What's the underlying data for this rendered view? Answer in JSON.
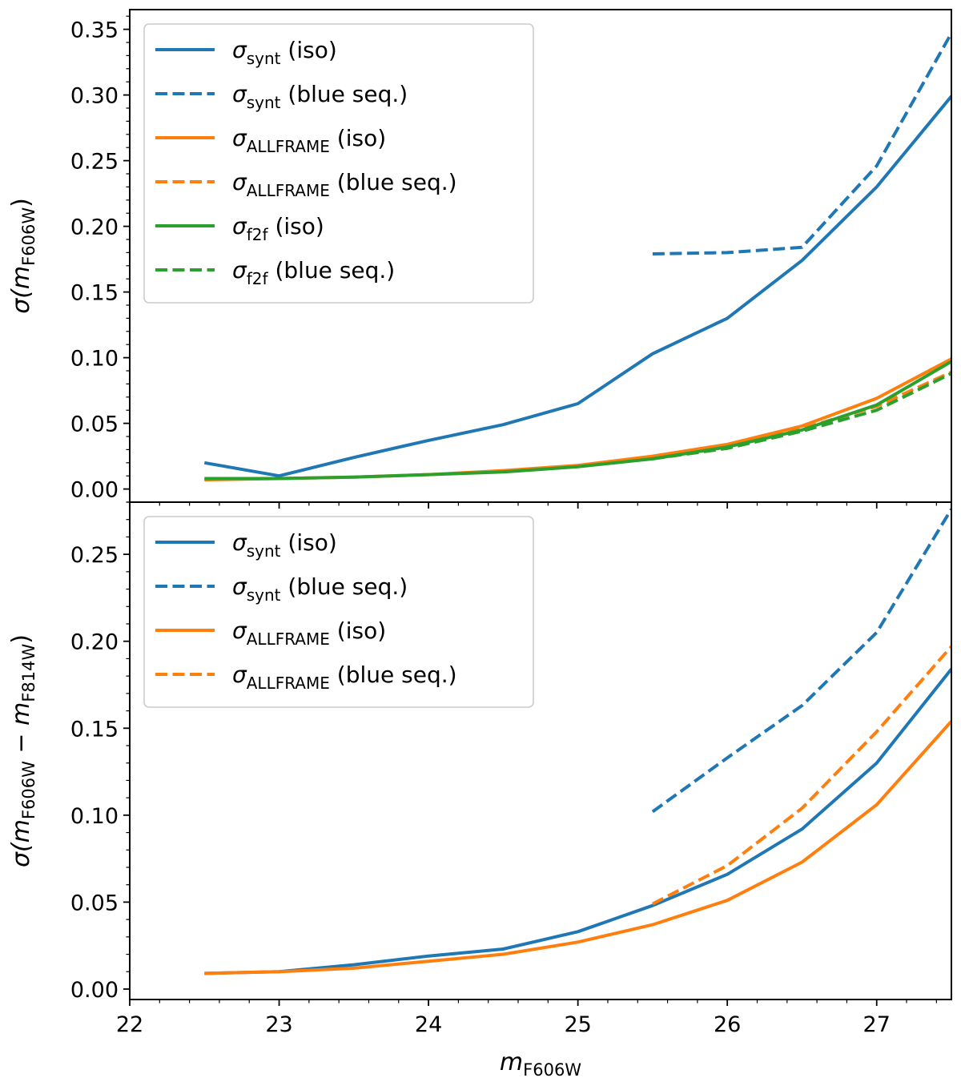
{
  "colors": {
    "blue": "#1f77b4",
    "orange": "#ff7f0e",
    "green": "#2ca02c"
  },
  "chart_data": [
    {
      "type": "line",
      "panel": "top",
      "ylabel": "σ(mF606W)",
      "ylabel_parts": {
        "sym": "σ(",
        "m": "m",
        "sub": "F606W",
        "close": ")"
      },
      "xlabel": "",
      "xlim": [
        22,
        27.5
      ],
      "ylim": [
        -0.01,
        0.365
      ],
      "x_ticks": [
        22,
        23,
        24,
        25,
        26,
        27
      ],
      "y_ticks": [
        0.0,
        0.05,
        0.1,
        0.15,
        0.2,
        0.25,
        0.3,
        0.35
      ],
      "y_tick_labels": [
        "0.00",
        "0.05",
        "0.10",
        "0.15",
        "0.20",
        "0.25",
        "0.30",
        "0.35"
      ],
      "legend_position": "top-left",
      "series": [
        {
          "name": "σsynt (iso)",
          "sigma": "σ",
          "sub": "synt",
          "suffix": " (iso)",
          "color": "blue",
          "dash": "solid",
          "x": [
            22.5,
            23.0,
            23.5,
            24.0,
            24.5,
            25.0,
            25.5,
            26.0,
            26.5,
            27.0,
            27.5
          ],
          "y": [
            0.02,
            0.01,
            0.024,
            0.037,
            0.049,
            0.065,
            0.103,
            0.13,
            0.174,
            0.23,
            0.299
          ]
        },
        {
          "name": "σsynt (blue seq.)",
          "sigma": "σ",
          "sub": "synt",
          "suffix": " (blue seq.)",
          "color": "blue",
          "dash": "dashed",
          "x": [
            25.5,
            26.0,
            26.5,
            27.0,
            27.5
          ],
          "y": [
            0.179,
            0.18,
            0.184,
            0.246,
            0.347
          ]
        },
        {
          "name": "σALLFRAME (iso)",
          "sigma": "σ",
          "sub": "ALLFRAME",
          "suffix": " (iso)",
          "color": "orange",
          "dash": "solid",
          "x": [
            22.5,
            23.0,
            23.5,
            24.0,
            24.5,
            25.0,
            25.5,
            26.0,
            26.5,
            27.0,
            27.5
          ],
          "y": [
            0.007,
            0.008,
            0.009,
            0.011,
            0.014,
            0.018,
            0.025,
            0.034,
            0.048,
            0.069,
            0.099
          ]
        },
        {
          "name": "σALLFRAME (blue seq.)",
          "sigma": "σ",
          "sub": "ALLFRAME",
          "suffix": " (blue seq.)",
          "color": "orange",
          "dash": "dashed",
          "x": [
            25.5,
            26.0,
            26.5,
            27.0,
            27.5
          ],
          "y": [
            0.024,
            0.033,
            0.046,
            0.063,
            0.089
          ]
        },
        {
          "name": "σf2f (iso)",
          "sigma": "σ",
          "sub": "f2f",
          "suffix": " (iso)",
          "color": "green",
          "dash": "solid",
          "x": [
            22.5,
            23.0,
            23.5,
            24.0,
            24.5,
            25.0,
            25.5,
            26.0,
            26.5,
            27.0,
            27.5
          ],
          "y": [
            0.008,
            0.008,
            0.009,
            0.011,
            0.013,
            0.017,
            0.023,
            0.032,
            0.045,
            0.064,
            0.097
          ]
        },
        {
          "name": "σf2f (blue seq.)",
          "sigma": "σ",
          "sub": "f2f",
          "suffix": " (blue seq.)",
          "color": "green",
          "dash": "dashed",
          "x": [
            25.5,
            26.0,
            26.5,
            27.0,
            27.5
          ],
          "y": [
            0.023,
            0.031,
            0.044,
            0.06,
            0.088
          ]
        }
      ]
    },
    {
      "type": "line",
      "panel": "bottom",
      "ylabel": "σ(mF606W − mF814W)",
      "ylabel_parts": {
        "sym": "σ(",
        "m": "m",
        "sub": "F606W",
        "minus": " − ",
        "m2": "m",
        "sub2": "F814W",
        "close": ")"
      },
      "xlabel": "mF606W",
      "xlabel_parts": {
        "m": "m",
        "sub": "F606W"
      },
      "xlim": [
        22,
        27.5
      ],
      "ylim": [
        -0.006,
        0.28
      ],
      "x_ticks": [
        22,
        23,
        24,
        25,
        26,
        27
      ],
      "x_tick_labels": [
        "22",
        "23",
        "24",
        "25",
        "26",
        "27"
      ],
      "y_ticks": [
        0.0,
        0.05,
        0.1,
        0.15,
        0.2,
        0.25
      ],
      "y_tick_labels": [
        "0.00",
        "0.05",
        "0.10",
        "0.15",
        "0.20",
        "0.25"
      ],
      "legend_position": "top-left",
      "series": [
        {
          "name": "σsynt (iso)",
          "sigma": "σ",
          "sub": "synt",
          "suffix": " (iso)",
          "color": "blue",
          "dash": "solid",
          "x": [
            22.5,
            23.0,
            23.5,
            24.0,
            24.5,
            25.0,
            25.5,
            26.0,
            26.5,
            27.0,
            27.5
          ],
          "y": [
            0.009,
            0.01,
            0.014,
            0.019,
            0.023,
            0.033,
            0.048,
            0.066,
            0.092,
            0.13,
            0.184
          ]
        },
        {
          "name": "σsynt (blue seq.)",
          "sigma": "σ",
          "sub": "synt",
          "suffix": " (blue seq.)",
          "color": "blue",
          "dash": "dashed",
          "x": [
            25.5,
            26.0,
            26.5,
            27.0,
            27.5
          ],
          "y": [
            0.102,
            0.133,
            0.163,
            0.205,
            0.276
          ]
        },
        {
          "name": "σALLFRAME (iso)",
          "sigma": "σ",
          "sub": "ALLFRAME",
          "suffix": " (iso)",
          "color": "orange",
          "dash": "solid",
          "x": [
            22.5,
            23.0,
            23.5,
            24.0,
            24.5,
            25.0,
            25.5,
            26.0,
            26.5,
            27.0,
            27.5
          ],
          "y": [
            0.009,
            0.01,
            0.012,
            0.016,
            0.02,
            0.027,
            0.037,
            0.051,
            0.073,
            0.106,
            0.154
          ]
        },
        {
          "name": "σALLFRAME (blue seq.)",
          "sigma": "σ",
          "sub": "ALLFRAME",
          "suffix": " (blue seq.)",
          "color": "orange",
          "dash": "dashed",
          "x": [
            25.5,
            26.0,
            26.5,
            27.0,
            27.5
          ],
          "y": [
            0.049,
            0.071,
            0.104,
            0.148,
            0.197
          ]
        }
      ]
    }
  ]
}
